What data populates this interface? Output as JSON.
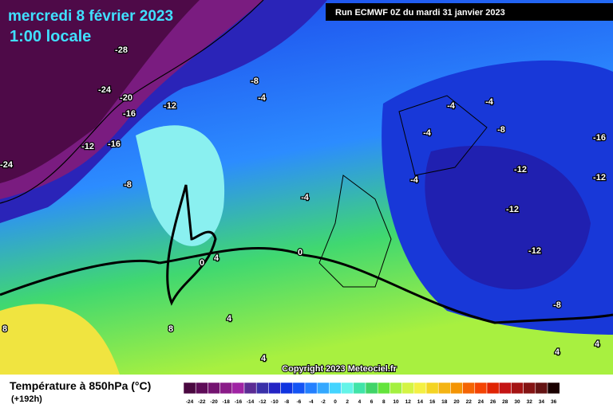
{
  "header": {
    "date": "mercredi 8 février 2023",
    "time": "1:00 locale",
    "run": "Run ECMWF 0Z du mardi 31 janvier 2023"
  },
  "copyright": "Copyright 2023 Meteociel.fr",
  "footer": {
    "title": "Température à 850hPa (°C)",
    "lead": "(+192h)"
  },
  "legend": {
    "levels": [
      -24,
      -22,
      -20,
      -18,
      -16,
      -14,
      -12,
      -10,
      -8,
      -6,
      -4,
      -2,
      0,
      2,
      4,
      6,
      8,
      10,
      12,
      14,
      16,
      18,
      20,
      22,
      24,
      26,
      28,
      30,
      32,
      34,
      36
    ],
    "colors": [
      "#4a0840",
      "#5e0c58",
      "#741470",
      "#8a1c88",
      "#a024a4",
      "#5c2c94",
      "#3a30a8",
      "#2424c4",
      "#1034e0",
      "#1454f4",
      "#2480ff",
      "#34a8ff",
      "#44d4ff",
      "#64f4e8",
      "#40e4a8",
      "#40d468",
      "#64e43c",
      "#a4f040",
      "#d4f444",
      "#f4f044",
      "#f4d424",
      "#f4b414",
      "#f49404",
      "#f46404",
      "#f44404",
      "#e02404",
      "#c41414",
      "#a41414",
      "#841414",
      "#641414",
      "#1a0000"
    ]
  },
  "map": {
    "contour_labels": [
      -28,
      -24,
      -20,
      -16,
      -12,
      -16,
      -12,
      -24,
      -8,
      -8,
      -4,
      -4,
      -4,
      -8,
      -16,
      -4,
      -12,
      -12,
      -4,
      -4,
      -12,
      -12,
      0,
      0,
      4,
      8,
      4,
      4,
      4,
      4,
      -8,
      8
    ]
  }
}
